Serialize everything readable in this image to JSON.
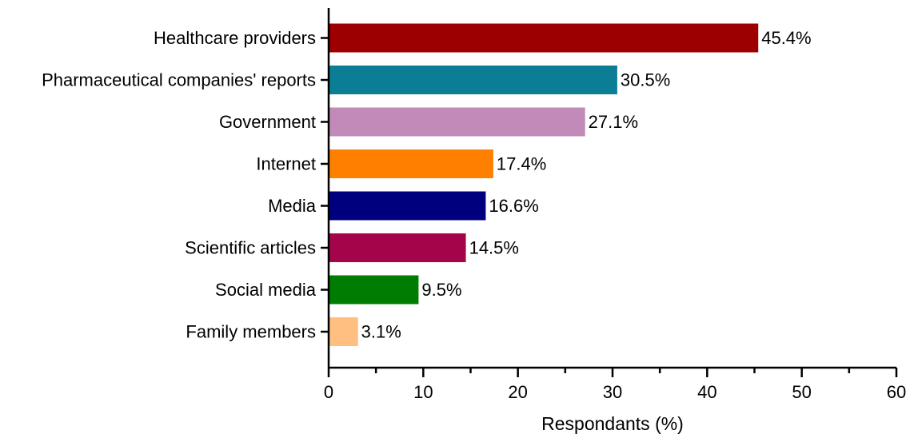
{
  "chart_data": {
    "type": "bar",
    "orientation": "horizontal",
    "categories": [
      "Healthcare providers",
      "Pharmaceutical companies' reports",
      "Government",
      "Internet",
      "Media",
      "Scientific articles",
      "Social media",
      "Family members"
    ],
    "values": [
      45.4,
      30.5,
      27.1,
      17.4,
      16.6,
      14.5,
      9.5,
      3.1
    ],
    "value_labels": [
      "45.4%",
      "30.5%",
      "27.1%",
      "17.4%",
      "16.6%",
      "14.5%",
      "9.5%",
      "3.1%"
    ],
    "colors": [
      "#9c0000",
      "#0b7d94",
      "#c28ab8",
      "#ff7f00",
      "#00007f",
      "#a3044a",
      "#007c00",
      "#ffbf80"
    ],
    "xlabel": "Respondants (%)",
    "ylabel": "",
    "xlim": [
      0,
      60
    ],
    "x_ticks": [
      0,
      10,
      20,
      30,
      40,
      50,
      60
    ],
    "grid": false,
    "legend": "none"
  }
}
